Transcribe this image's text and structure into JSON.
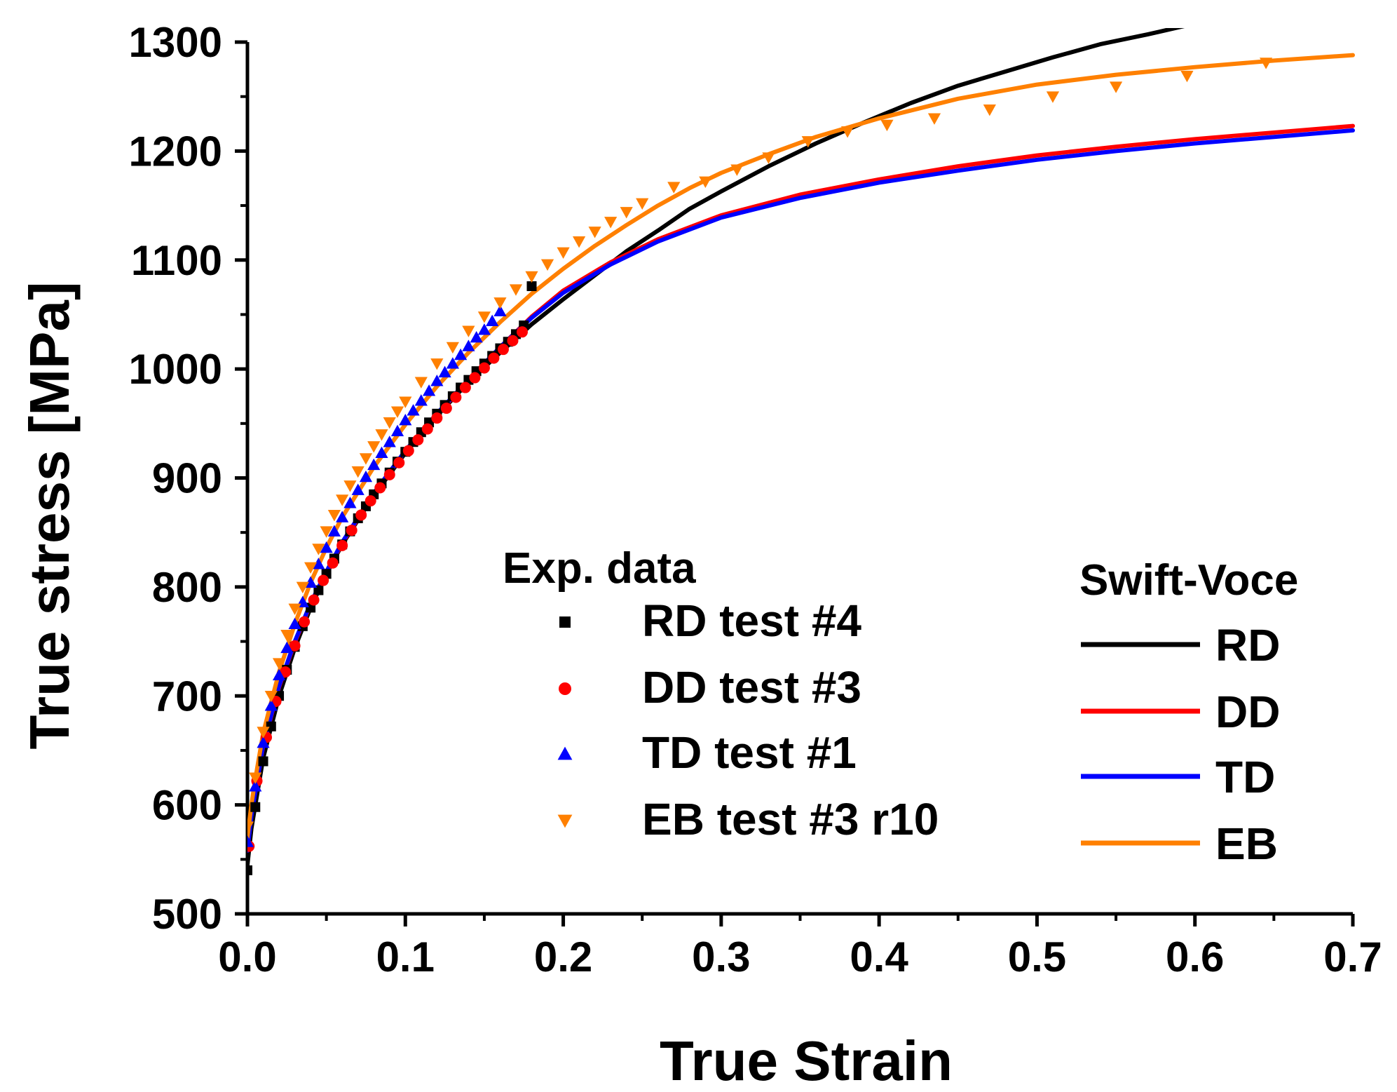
{
  "chart_data": {
    "type": "line",
    "xlabel": "True Strain",
    "ylabel": "True stress [MPa]",
    "xlim": [
      0.0,
      0.7
    ],
    "ylim": [
      500,
      1300
    ],
    "xticks": [
      "0.0",
      "0.1",
      "0.2",
      "0.3",
      "0.4",
      "0.5",
      "0.6",
      "0.7"
    ],
    "yticks": [
      "500",
      "600",
      "700",
      "800",
      "900",
      "1000",
      "1100",
      "1200",
      "1300"
    ],
    "grid": false,
    "legend_exp_title": "Exp. data",
    "legend_fit_title": "Swift-Voce",
    "experimental": [
      {
        "name": "RD test #4",
        "marker": "square",
        "color": "#000000",
        "x": [
          0.0,
          0.005,
          0.01,
          0.015,
          0.02,
          0.025,
          0.03,
          0.035,
          0.04,
          0.045,
          0.05,
          0.055,
          0.06,
          0.065,
          0.07,
          0.075,
          0.08,
          0.085,
          0.09,
          0.095,
          0.1,
          0.105,
          0.11,
          0.115,
          0.12,
          0.125,
          0.13,
          0.135,
          0.14,
          0.145,
          0.15,
          0.155,
          0.16,
          0.165,
          0.17,
          0.175,
          0.18
        ],
        "y": [
          540,
          598,
          640,
          672,
          700,
          724,
          745,
          764,
          781,
          797,
          812,
          826,
          839,
          851,
          863,
          874,
          885,
          895,
          905,
          915,
          924,
          933,
          942,
          951,
          959,
          967,
          975,
          983,
          990,
          998,
          1005,
          1012,
          1019,
          1025,
          1032,
          1040,
          1076
        ]
      },
      {
        "name": "DD test #3",
        "marker": "circle",
        "color": "#ff0000",
        "x": [
          0.001,
          0.006,
          0.012,
          0.018,
          0.024,
          0.03,
          0.036,
          0.042,
          0.048,
          0.054,
          0.06,
          0.066,
          0.072,
          0.078,
          0.084,
          0.09,
          0.096,
          0.102,
          0.108,
          0.114,
          0.12,
          0.126,
          0.132,
          0.138,
          0.144,
          0.15,
          0.156,
          0.162,
          0.168,
          0.174
        ],
        "y": [
          562,
          622,
          662,
          695,
          722,
          746,
          768,
          788,
          806,
          822,
          838,
          852,
          866,
          879,
          891,
          903,
          914,
          925,
          935,
          945,
          955,
          964,
          974,
          983,
          992,
          1001,
          1010,
          1018,
          1026,
          1034
        ]
      },
      {
        "name": "TD test #1",
        "marker": "triangle-up",
        "color": "#0000ff",
        "x": [
          0.0,
          0.005,
          0.01,
          0.015,
          0.02,
          0.025,
          0.03,
          0.035,
          0.04,
          0.045,
          0.05,
          0.055,
          0.06,
          0.065,
          0.07,
          0.075,
          0.08,
          0.085,
          0.09,
          0.095,
          0.1,
          0.105,
          0.11,
          0.115,
          0.12,
          0.125,
          0.13,
          0.135,
          0.14,
          0.145,
          0.15,
          0.155,
          0.16
        ],
        "y": [
          566,
          617,
          657,
          691,
          719,
          744,
          766,
          786,
          804,
          821,
          836,
          851,
          864,
          877,
          889,
          901,
          912,
          923,
          933,
          943,
          953,
          962,
          971,
          980,
          989,
          997,
          1005,
          1013,
          1021,
          1029,
          1036,
          1044,
          1053
        ]
      },
      {
        "name": "EB test #3 r10",
        "marker": "triangle-down",
        "color": "#ff8000",
        "x": [
          0.0,
          0.005,
          0.01,
          0.015,
          0.02,
          0.025,
          0.03,
          0.035,
          0.04,
          0.045,
          0.05,
          0.055,
          0.06,
          0.065,
          0.07,
          0.075,
          0.08,
          0.085,
          0.09,
          0.095,
          0.1,
          0.11,
          0.12,
          0.13,
          0.14,
          0.15,
          0.16,
          0.17,
          0.18,
          0.19,
          0.2,
          0.21,
          0.22,
          0.23,
          0.24,
          0.25,
          0.27,
          0.29,
          0.31,
          0.33,
          0.355,
          0.38,
          0.405,
          0.435,
          0.47,
          0.51,
          0.55,
          0.595,
          0.645
        ],
        "y": [
          580,
          625,
          667,
          700,
          730,
          756,
          780,
          800,
          818,
          835,
          851,
          866,
          880,
          893,
          906,
          918,
          929,
          940,
          951,
          961,
          970,
          988,
          1005,
          1020,
          1035,
          1048,
          1061,
          1073,
          1085,
          1096,
          1107,
          1117,
          1126,
          1135,
          1144,
          1152,
          1167,
          1172,
          1183,
          1194,
          1209,
          1218,
          1224,
          1230,
          1238,
          1250,
          1259,
          1269,
          1281
        ]
      }
    ],
    "fits": [
      {
        "name": "RD",
        "color": "#000000",
        "x": [
          0.0,
          0.0025,
          0.005,
          0.01,
          0.02,
          0.03,
          0.04,
          0.05,
          0.06,
          0.08,
          0.1,
          0.12,
          0.14,
          0.16,
          0.18,
          0.2,
          0.22,
          0.24,
          0.26,
          0.28,
          0.3,
          0.33,
          0.36,
          0.39,
          0.42,
          0.45,
          0.48,
          0.51,
          0.54,
          0.57,
          0.6,
          0.61
        ],
        "y": [
          545,
          578,
          600,
          643,
          700,
          744,
          781,
          812,
          839,
          884,
          923,
          957,
          988,
          1015,
          1041,
          1064,
          1086,
          1108,
          1127,
          1147,
          1163,
          1186,
          1207,
          1226,
          1244,
          1260,
          1273,
          1286,
          1298,
          1307,
          1317,
          1320
        ]
      },
      {
        "name": "DD",
        "color": "#ff0000",
        "x": [
          0.0,
          0.0025,
          0.005,
          0.01,
          0.02,
          0.03,
          0.04,
          0.05,
          0.06,
          0.08,
          0.1,
          0.12,
          0.14,
          0.16,
          0.18,
          0.2,
          0.23,
          0.26,
          0.3,
          0.35,
          0.4,
          0.45,
          0.5,
          0.55,
          0.6,
          0.65,
          0.7
        ],
        "y": [
          558,
          590,
          612,
          654,
          708,
          749,
          784,
          813,
          840,
          885,
          925,
          958,
          990,
          1020,
          1048,
          1072,
          1098,
          1119,
          1141,
          1160,
          1174,
          1186,
          1196,
          1204,
          1211,
          1217,
          1223
        ]
      },
      {
        "name": "TD",
        "color": "#0000ff",
        "x": [
          0.0,
          0.0025,
          0.005,
          0.01,
          0.02,
          0.03,
          0.04,
          0.05,
          0.06,
          0.08,
          0.1,
          0.12,
          0.14,
          0.16,
          0.18,
          0.2,
          0.23,
          0.26,
          0.3,
          0.35,
          0.4,
          0.45,
          0.5,
          0.55,
          0.6,
          0.65,
          0.7
        ],
        "y": [
          558,
          590,
          612,
          655,
          709,
          750,
          785,
          814,
          841,
          886,
          925,
          959,
          990,
          1020,
          1047,
          1070,
          1096,
          1117,
          1139,
          1157,
          1171,
          1182,
          1192,
          1200,
          1207,
          1213,
          1219
        ]
      },
      {
        "name": "EB",
        "color": "#ff8000",
        "x": [
          0.0,
          0.0025,
          0.005,
          0.01,
          0.02,
          0.03,
          0.04,
          0.05,
          0.06,
          0.08,
          0.1,
          0.12,
          0.14,
          0.16,
          0.18,
          0.2,
          0.22,
          0.24,
          0.26,
          0.28,
          0.3,
          0.33,
          0.36,
          0.4,
          0.45,
          0.5,
          0.55,
          0.6,
          0.65,
          0.7
        ],
        "y": [
          570,
          600,
          624,
          666,
          722,
          766,
          804,
          836,
          864,
          910,
          949,
          984,
          1015,
          1043,
          1069,
          1092,
          1113,
          1132,
          1150,
          1166,
          1180,
          1197,
          1213,
          1230,
          1248,
          1261,
          1270,
          1277,
          1283,
          1288
        ]
      }
    ]
  }
}
